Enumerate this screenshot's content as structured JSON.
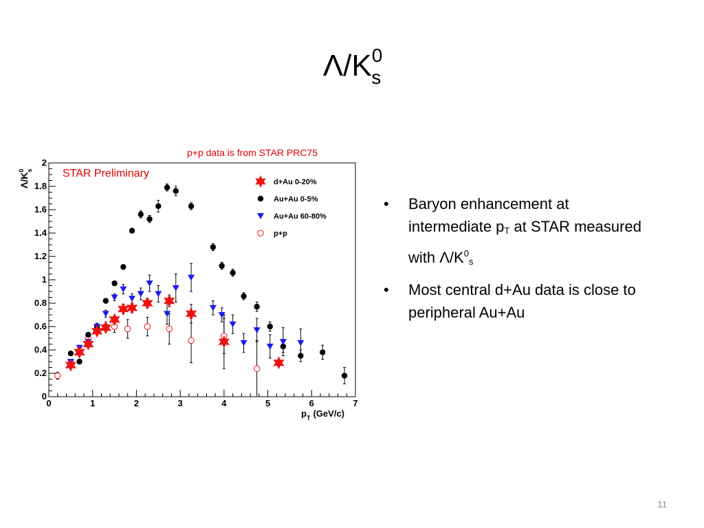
{
  "slide": {
    "title_main": "Λ/K",
    "title_sup": "0",
    "title_sub": "s",
    "page_number": "11"
  },
  "note": "p+p data is from STAR PRC75",
  "bullets": [
    {
      "line1": "Baryon enhancement at",
      "line2_pre": "intermediate p",
      "line2_sub": "T",
      "line2_post": " at STAR measured",
      "line3_pre": "with Λ/K",
      "line3_sup": "0",
      "line3_sub": "s"
    },
    {
      "text": "Most central d+Au data is close to peripheral Au+Au"
    }
  ],
  "colors": {
    "dAu": "#ee1111",
    "AuAu_central": "#000000",
    "AuAu_peripheral": "#1a1aee",
    "pp": "#ee1111",
    "note": "#e00000"
  },
  "chart_data": {
    "type": "scatter",
    "annotation": "STAR Preliminary",
    "ylabel_main": "Λ/K",
    "ylabel_sup": "0",
    "ylabel_sub": "s",
    "xlabel_main": "p",
    "xlabel_sub": "T",
    "xlabel_unit": "(GeV/c)",
    "xlim": [
      0,
      7
    ],
    "ylim": [
      0,
      2
    ],
    "xticks": [
      "0",
      "1",
      "2",
      "3",
      "4",
      "5",
      "6",
      "7"
    ],
    "yticks": [
      "0",
      "0.2",
      "0.4",
      "0.6",
      "0.8",
      "1",
      "1.2",
      "1.4",
      "1.6",
      "1.8",
      "2"
    ],
    "legend_position": "top-right",
    "series": [
      {
        "name": "d+Au 0-20%",
        "marker": "star",
        "color": "#ee1111",
        "points": [
          [
            0.5,
            0.27,
            0.03
          ],
          [
            0.7,
            0.38,
            0.03
          ],
          [
            0.9,
            0.45,
            0.03
          ],
          [
            1.1,
            0.56,
            0.03
          ],
          [
            1.3,
            0.59,
            0.03
          ],
          [
            1.5,
            0.66,
            0.03
          ],
          [
            1.7,
            0.75,
            0.04
          ],
          [
            1.9,
            0.76,
            0.04
          ],
          [
            2.25,
            0.8,
            0.04
          ],
          [
            2.75,
            0.82,
            0.05
          ],
          [
            3.25,
            0.71,
            0.08
          ],
          [
            4.0,
            0.47,
            0.23
          ],
          [
            5.25,
            0.29,
            0.03
          ]
        ]
      },
      {
        "name": "Au+Au 0-5%",
        "marker": "circle-filled",
        "color": "#000000",
        "points": [
          [
            0.5,
            0.37,
            0.01
          ],
          [
            0.7,
            0.3,
            0.02
          ],
          [
            0.9,
            0.53,
            0.02
          ],
          [
            1.1,
            0.6,
            0.02
          ],
          [
            1.3,
            0.82,
            0.02
          ],
          [
            1.5,
            0.97,
            0.02
          ],
          [
            1.7,
            1.11,
            0.02
          ],
          [
            1.9,
            1.42,
            0.02
          ],
          [
            2.1,
            1.56,
            0.03
          ],
          [
            2.3,
            1.52,
            0.03
          ],
          [
            2.5,
            1.63,
            0.05
          ],
          [
            2.7,
            1.79,
            0.03
          ],
          [
            2.9,
            1.76,
            0.04
          ],
          [
            3.25,
            1.63,
            0.03
          ],
          [
            3.75,
            1.28,
            0.03
          ],
          [
            3.95,
            1.12,
            0.03
          ],
          [
            4.2,
            1.06,
            0.03
          ],
          [
            4.45,
            0.86,
            0.03
          ],
          [
            4.75,
            0.77,
            0.04
          ],
          [
            5.05,
            0.6,
            0.04
          ],
          [
            5.35,
            0.43,
            0.05
          ],
          [
            5.75,
            0.35,
            0.05
          ],
          [
            6.25,
            0.38,
            0.06
          ],
          [
            6.75,
            0.18,
            0.07
          ]
        ]
      },
      {
        "name": "Au+Au 60-80%",
        "marker": "triangle-down",
        "color": "#1a1aee",
        "points": [
          [
            0.5,
            0.3,
            0.02
          ],
          [
            0.7,
            0.42,
            0.02
          ],
          [
            0.9,
            0.47,
            0.02
          ],
          [
            1.1,
            0.6,
            0.03
          ],
          [
            1.3,
            0.71,
            0.03
          ],
          [
            1.5,
            0.85,
            0.03
          ],
          [
            1.7,
            0.92,
            0.04
          ],
          [
            1.9,
            0.84,
            0.04
          ],
          [
            2.1,
            0.88,
            0.05
          ],
          [
            2.3,
            0.97,
            0.07
          ],
          [
            2.5,
            0.88,
            0.07
          ],
          [
            2.7,
            0.71,
            0.09
          ],
          [
            2.9,
            0.93,
            0.12
          ],
          [
            3.25,
            1.02,
            0.12
          ],
          [
            3.75,
            0.76,
            0.06
          ],
          [
            3.95,
            0.7,
            0.06
          ],
          [
            4.2,
            0.62,
            0.08
          ],
          [
            4.45,
            0.46,
            0.08
          ],
          [
            4.75,
            0.57,
            0.1
          ],
          [
            5.05,
            0.43,
            0.1
          ],
          [
            5.35,
            0.47,
            0.12
          ],
          [
            5.75,
            0.46,
            0.12
          ]
        ]
      },
      {
        "name": "p+p",
        "marker": "circle-open",
        "color": "#ee1111",
        "points": [
          [
            0.2,
            0.18,
            0.03
          ],
          [
            0.5,
            0.29,
            0.03
          ],
          [
            0.7,
            0.4,
            0.03
          ],
          [
            0.9,
            0.5,
            0.03
          ],
          [
            1.1,
            0.57,
            0.03
          ],
          [
            1.3,
            0.6,
            0.04
          ],
          [
            1.5,
            0.6,
            0.05
          ],
          [
            1.8,
            0.58,
            0.08
          ],
          [
            2.25,
            0.6,
            0.08
          ],
          [
            2.75,
            0.58,
            0.13
          ],
          [
            3.25,
            0.48,
            0.19
          ],
          [
            4.0,
            0.52,
            0.15
          ],
          [
            4.75,
            0.24,
            0.24
          ]
        ]
      }
    ]
  }
}
